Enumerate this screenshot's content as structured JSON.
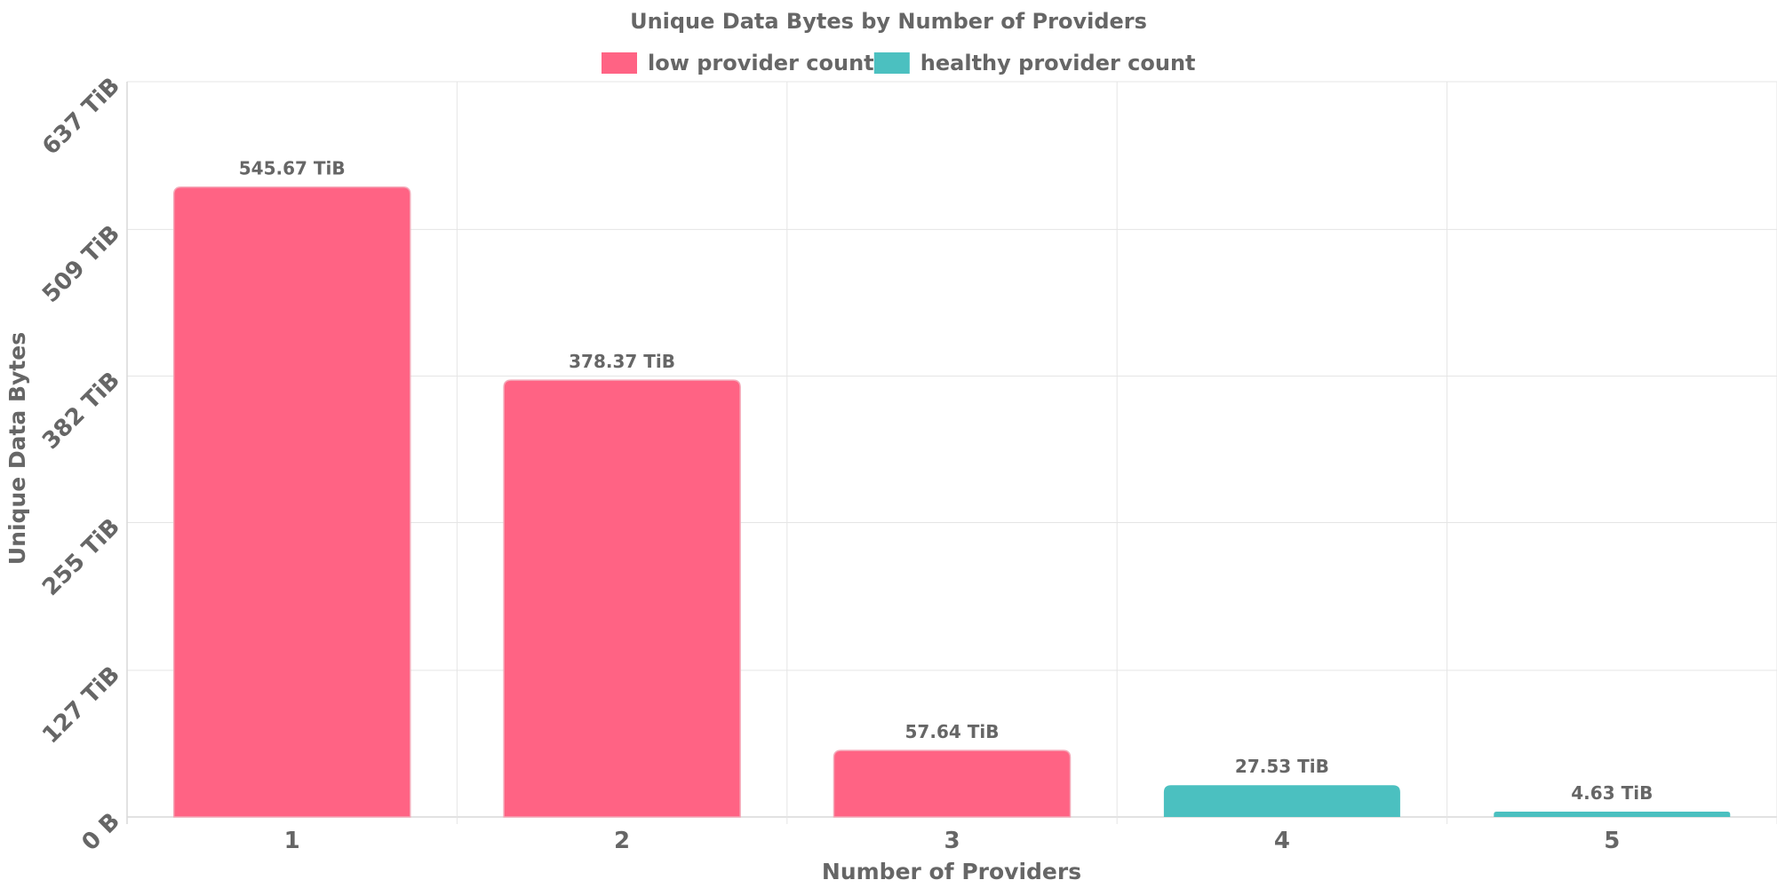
{
  "chart_data": {
    "type": "bar",
    "title": "Unique Data Bytes by Number of Providers",
    "xlabel": "Number of Providers",
    "ylabel": "Unique Data Bytes",
    "categories": [
      "1",
      "2",
      "3",
      "4",
      "5"
    ],
    "values": [
      545.67,
      378.37,
      57.64,
      27.53,
      4.63
    ],
    "value_unit": "TiB",
    "data_labels": [
      "545.67 TiB",
      "378.37 TiB",
      "57.64 TiB",
      "27.53 TiB",
      "4.63 TiB"
    ],
    "bar_groups": [
      "low",
      "low",
      "low",
      "healthy",
      "healthy"
    ],
    "ylim": [
      0,
      637
    ],
    "yticks": [
      0,
      127,
      255,
      382,
      509,
      637
    ],
    "ytick_labels": [
      "0 B",
      "127 TiB",
      "255 TiB",
      "382 TiB",
      "509 TiB",
      "637 TiB"
    ],
    "grid": true,
    "legend": {
      "placement": "top-center",
      "entries": [
        {
          "key": "low",
          "label": "low provider count",
          "color": "#ff6384"
        },
        {
          "key": "healthy",
          "label": "healthy provider count",
          "color": "#4bc0c0"
        }
      ]
    }
  }
}
